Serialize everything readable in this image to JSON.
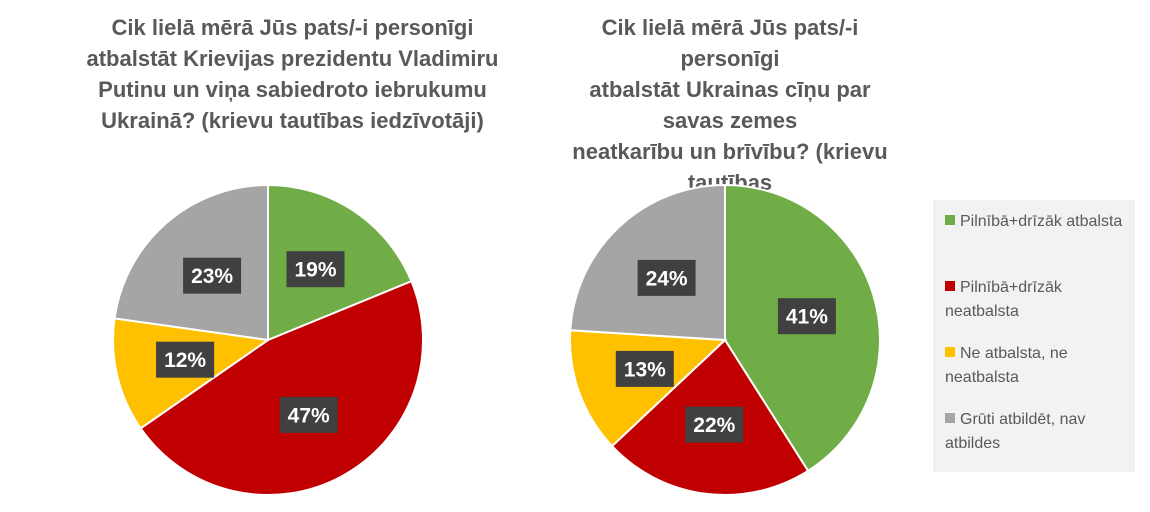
{
  "chart_data": [
    {
      "type": "pie",
      "title": "Cik lielā mērā Jūs pats/-i personīgi\natbalstāt Krievijas prezidentu Vladimiru\nPutinu un viņa sabiedroto iebrukumu\nUkrainā? (krievu tautības iedzīvotāji)",
      "slices": [
        {
          "label": "Pilnībā+drīzāk atbalsta",
          "value": 19,
          "display": "19%",
          "color": "#70ad47"
        },
        {
          "label": "Pilnībā+drīzāk neatbalsta",
          "value": 47,
          "display": "47%",
          "color": "#c00000"
        },
        {
          "label": "Ne atbalsta, ne neatbalsta",
          "value": 12,
          "display": "12%",
          "color": "#ffc000"
        },
        {
          "label": "Grūti atbildēt, nav atbildes",
          "value": 23,
          "display": "23%",
          "color": "#a5a5a5"
        }
      ]
    },
    {
      "type": "pie",
      "title": "Cik lielā mērā Jūs pats/-i personīgi\natbalstāt Ukrainas cīņu par savas zemes\nneatkarību un brīvību? (krievu tautības\niedzīvotāji)",
      "slices": [
        {
          "label": "Pilnībā+drīzāk atbalsta",
          "value": 41,
          "display": "41%",
          "color": "#70ad47"
        },
        {
          "label": "Pilnībā+drīzāk neatbalsta",
          "value": 22,
          "display": "22%",
          "color": "#c00000"
        },
        {
          "label": "Ne atbalsta, ne neatbalsta",
          "value": 13,
          "display": "13%",
          "color": "#ffc000"
        },
        {
          "label": "Grūti atbildēt, nav atbildes",
          "value": 24,
          "display": "24%",
          "color": "#a5a5a5"
        }
      ]
    }
  ],
  "legend": {
    "placement": "right",
    "items": [
      {
        "label": "Pilnībā+drīzāk atbalsta",
        "color": "#70ad47"
      },
      {
        "label": "Pilnībā+drīzāk neatbalsta",
        "color": "#c00000"
      },
      {
        "label": "Ne atbalsta, ne neatbalsta",
        "color": "#ffc000"
      },
      {
        "label": "Grūti atbildēt, nav atbildes",
        "color": "#a5a5a5"
      }
    ]
  }
}
